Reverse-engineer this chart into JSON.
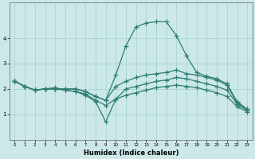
{
  "xlabel": "Humidex (Indice chaleur)",
  "xlim": [
    -0.5,
    23.5
  ],
  "ylim": [
    0,
    5.4
  ],
  "yticks": [
    1,
    2,
    3,
    4
  ],
  "xticks": [
    0,
    1,
    2,
    3,
    4,
    5,
    6,
    7,
    8,
    9,
    10,
    11,
    12,
    13,
    14,
    15,
    16,
    17,
    18,
    19,
    20,
    21,
    22,
    23
  ],
  "bg_color": "#cce8e8",
  "line_color": "#2e7d72",
  "grid_color": "#aad4d4",
  "series": [
    {
      "x": [
        0,
        1,
        2,
        3,
        4,
        5,
        6,
        7,
        8,
        9,
        10,
        11,
        12,
        13,
        14,
        15,
        16,
        17,
        18,
        19,
        20,
        21,
        22,
        23
      ],
      "y": [
        2.3,
        2.1,
        1.95,
        2.0,
        2.0,
        2.0,
        2.0,
        1.9,
        1.7,
        1.55,
        2.55,
        3.7,
        4.45,
        4.6,
        4.65,
        4.65,
        4.1,
        3.3,
        2.65,
        2.5,
        2.4,
        2.2,
        1.5,
        1.2
      ]
    },
    {
      "x": [
        0,
        1,
        2,
        3,
        4,
        5,
        6,
        7,
        8,
        9,
        10,
        11,
        12,
        13,
        14,
        15,
        16,
        17,
        18,
        19,
        20,
        21,
        22,
        23
      ],
      "y": [
        2.3,
        2.1,
        1.95,
        2.0,
        2.0,
        2.0,
        2.0,
        1.9,
        1.7,
        1.55,
        2.1,
        2.3,
        2.45,
        2.55,
        2.6,
        2.65,
        2.75,
        2.6,
        2.55,
        2.45,
        2.35,
        2.15,
        1.45,
        1.2
      ]
    },
    {
      "x": [
        0,
        1,
        2,
        3,
        4,
        5,
        6,
        7,
        8,
        9,
        10,
        11,
        12,
        13,
        14,
        15,
        16,
        17,
        18,
        19,
        20,
        21,
        22,
        23
      ],
      "y": [
        2.3,
        2.1,
        1.95,
        2.0,
        2.05,
        1.95,
        1.9,
        1.8,
        1.55,
        1.35,
        1.6,
        2.0,
        2.1,
        2.2,
        2.3,
        2.35,
        2.45,
        2.4,
        2.3,
        2.2,
        2.1,
        1.95,
        1.4,
        1.15
      ]
    },
    {
      "x": [
        0,
        1,
        2,
        3,
        4,
        5,
        6,
        7,
        8,
        9,
        10,
        11,
        12,
        13,
        14,
        15,
        16,
        17,
        18,
        19,
        20,
        21,
        22,
        23
      ],
      "y": [
        2.3,
        2.1,
        1.95,
        2.0,
        2.0,
        1.95,
        1.9,
        1.75,
        1.5,
        0.7,
        1.6,
        1.75,
        1.85,
        1.95,
        2.05,
        2.1,
        2.15,
        2.1,
        2.05,
        1.95,
        1.85,
        1.7,
        1.3,
        1.1
      ]
    }
  ]
}
